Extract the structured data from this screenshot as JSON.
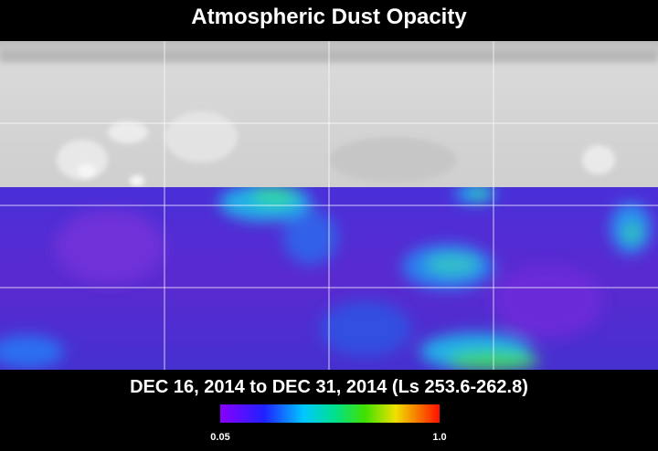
{
  "title": "Atmospheric Dust Opacity",
  "subtitle": "DEC 16, 2014 to DEC 31, 2014 (Ls 253.6-262.8)",
  "colorbar": {
    "min_label": "0.05",
    "max_label": "1.0"
  }
}
